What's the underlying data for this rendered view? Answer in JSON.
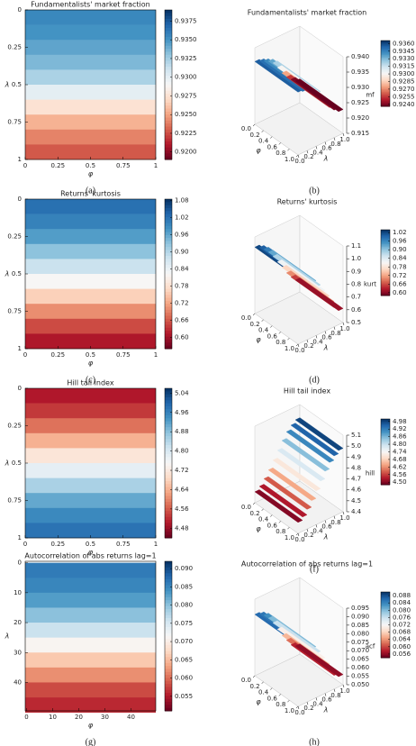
{
  "colormap": [
    "#67001f",
    "#b2182b",
    "#d6604d",
    "#f4a582",
    "#fddbc7",
    "#f7f7f7",
    "#d1e5f0",
    "#92c5de",
    "#4393c3",
    "#2166ac",
    "#053061"
  ],
  "chart_data": [
    {
      "type": "heatmap",
      "title": "Fundamentalists' market fraction",
      "caption": "(a)",
      "xlabel": "φ",
      "ylabel": "λ",
      "xlim": [
        0,
        1
      ],
      "xticks": [
        0,
        0.25,
        0.5,
        0.75,
        1
      ],
      "ylim": [
        0,
        1
      ],
      "yticks": [
        0,
        0.25,
        0.5,
        0.75,
        1
      ],
      "y": [
        0.05,
        0.15,
        0.25,
        0.35,
        0.45,
        0.55,
        0.65,
        0.75,
        0.85,
        0.95
      ],
      "values": [
        0.9355,
        0.935,
        0.9343,
        0.9335,
        0.9322,
        0.93,
        0.9275,
        0.9255,
        0.924,
        0.9228
      ],
      "clim": [
        0.919,
        0.939
      ],
      "cticks": [
        0.9375,
        {
          "value": 0.935,
          "label": "0.9350"
        },
        0.9325,
        {
          "value": 0.93,
          "label": "0.9300"
        },
        0.9275,
        {
          "value": 0.925,
          "label": "0.9250"
        },
        0.9225,
        {
          "value": 0.92,
          "label": "0.9200"
        }
      ]
    },
    {
      "type": "surface3d",
      "title": "Fundamentalists' market fraction",
      "caption": "(b)",
      "xlabel": "φ",
      "ylabel": "λ",
      "zlabel": "mf",
      "xlim": [
        0,
        1
      ],
      "xticks": [
        {
          "value": 0,
          "label": "0.0"
        },
        0.2,
        0.4,
        0.6,
        0.8,
        {
          "value": 1,
          "label": "1.0"
        }
      ],
      "ylim": [
        0,
        1
      ],
      "yticks": [
        {
          "value": 0,
          "label": "0.0"
        },
        0.2,
        0.4,
        0.6,
        0.8,
        {
          "value": 1,
          "label": "1.0"
        }
      ],
      "zlim": [
        0.915,
        0.94
      ],
      "zticks": [
        {
          "value": 0.94,
          "label": "0.940"
        },
        0.935,
        {
          "value": 0.93,
          "label": "0.930"
        },
        0.925,
        {
          "value": 0.92,
          "label": "0.920"
        },
        0.915
      ],
      "y": [
        0.05,
        0.15,
        0.25,
        0.35,
        0.45,
        0.55,
        0.65,
        0.75,
        0.85,
        0.95
      ],
      "values": [
        0.9355,
        0.935,
        0.9343,
        0.9335,
        0.9322,
        0.93,
        0.9275,
        0.9255,
        0.924,
        0.9228
      ],
      "clim": [
        0.9236,
        0.9366
      ],
      "cticks": [
        {
          "value": 0.936,
          "label": "0.9360"
        },
        0.9345,
        {
          "value": 0.933,
          "label": "0.9330"
        },
        0.9315,
        {
          "value": 0.93,
          "label": "0.9300"
        },
        0.9285,
        {
          "value": 0.927,
          "label": "0.9270"
        },
        0.9255,
        {
          "value": 0.924,
          "label": "0.9240"
        }
      ]
    },
    {
      "type": "heatmap",
      "title": "Returns' kurtosis",
      "caption": "(c)",
      "xlabel": "φ",
      "ylabel": "λ",
      "xlim": [
        0,
        1
      ],
      "xticks": [
        0,
        0.25,
        0.5,
        0.75,
        1
      ],
      "ylim": [
        0,
        1
      ],
      "yticks": [
        0,
        0.25,
        0.5,
        0.75,
        1
      ],
      "y": [
        0.05,
        0.15,
        0.25,
        0.35,
        0.45,
        0.55,
        0.65,
        0.75,
        0.85,
        0.95
      ],
      "values": [
        1.02,
        1.0,
        0.97,
        0.93,
        0.88,
        0.82,
        0.76,
        0.7,
        0.65,
        0.61
      ],
      "clim": [
        0.56,
        1.085
      ],
      "cticks": [
        1.08,
        1.02,
        0.96,
        {
          "value": 0.9,
          "label": "0.90"
        },
        0.84,
        0.78,
        0.72,
        0.66,
        {
          "value": 0.6,
          "label": "0.60"
        }
      ]
    },
    {
      "type": "surface3d",
      "title": "Returns' kurtosis",
      "caption": "(d)",
      "xlabel": "φ",
      "ylabel": "λ",
      "zlabel": "kurt",
      "xlim": [
        0,
        1
      ],
      "xticks": [
        {
          "value": 0,
          "label": "0.0"
        },
        0.2,
        0.4,
        0.6,
        0.8,
        {
          "value": 1,
          "label": "1.0"
        }
      ],
      "ylim": [
        0,
        1
      ],
      "yticks": [
        {
          "value": 0,
          "label": "0.0"
        },
        0.2,
        0.4,
        0.6,
        0.8,
        {
          "value": 1,
          "label": "1.0"
        }
      ],
      "zlim": [
        0.5,
        1.1
      ],
      "zticks": [
        1.1,
        {
          "value": 1,
          "label": "1.0"
        },
        0.9,
        0.8,
        0.7,
        0.6,
        0.5
      ],
      "y": [
        0.05,
        0.15,
        0.25,
        0.35,
        0.45,
        0.55,
        0.65,
        0.75,
        0.85,
        0.95
      ],
      "values": [
        1.02,
        1.0,
        0.97,
        0.93,
        0.88,
        0.82,
        0.76,
        0.7,
        0.65,
        0.61
      ],
      "clim": [
        0.58,
        1.04
      ],
      "cticks": [
        1.02,
        0.96,
        {
          "value": 0.9,
          "label": "0.90"
        },
        0.84,
        0.78,
        0.72,
        0.66,
        {
          "value": 0.6,
          "label": "0.60"
        }
      ]
    },
    {
      "type": "heatmap",
      "title": "Hill tail index",
      "caption": "(e)",
      "xlabel": "φ",
      "ylabel": "λ",
      "xlim": [
        0,
        1
      ],
      "xticks": [
        0,
        0.25,
        0.5,
        0.75,
        1
      ],
      "ylim": [
        0,
        1
      ],
      "yticks": [
        0,
        0.25,
        0.5,
        0.75,
        1
      ],
      "y": [
        0.05,
        0.15,
        0.25,
        0.35,
        0.45,
        0.55,
        0.65,
        0.75,
        0.85,
        0.95
      ],
      "values": [
        4.5,
        4.53,
        4.58,
        4.64,
        4.71,
        4.78,
        4.85,
        4.91,
        4.95,
        4.98
      ],
      "clim": [
        4.44,
        5.06
      ],
      "cticks": [
        5.04,
        4.96,
        4.88,
        {
          "value": 4.8,
          "label": "4.80"
        },
        4.72,
        4.64,
        4.56,
        4.48
      ]
    },
    {
      "type": "surface3d",
      "title": "Hill tail index",
      "caption": "(f)",
      "xlabel": "φ",
      "ylabel": "λ",
      "zlabel": "hill",
      "xlim": [
        0,
        1
      ],
      "xticks": [
        {
          "value": 0,
          "label": "0.0"
        },
        0.2,
        0.4,
        0.6,
        0.8,
        {
          "value": 1,
          "label": "1.0"
        }
      ],
      "ylim": [
        0,
        1
      ],
      "yticks": [
        {
          "value": 0,
          "label": "0.0"
        },
        0.2,
        0.4,
        0.6,
        0.8,
        {
          "value": 1,
          "label": "1.0"
        }
      ],
      "zlim": [
        4.4,
        5.1
      ],
      "zticks": [
        5.1,
        {
          "value": 5,
          "label": "5.0"
        },
        4.9,
        4.8,
        4.7,
        4.6,
        4.5,
        4.4
      ],
      "y": [
        0.05,
        0.15,
        0.25,
        0.35,
        0.45,
        0.55,
        0.65,
        0.75,
        0.85,
        0.95
      ],
      "values": [
        4.5,
        4.53,
        4.58,
        4.64,
        4.71,
        4.78,
        4.85,
        4.91,
        4.95,
        4.98
      ],
      "clim": [
        4.48,
        5.0
      ],
      "cticks": [
        4.98,
        4.92,
        4.86,
        {
          "value": 4.8,
          "label": "4.80"
        },
        4.74,
        4.68,
        4.62,
        4.56,
        {
          "value": 4.5,
          "label": "4.50"
        }
      ]
    },
    {
      "type": "heatmap",
      "title": "Autocorrelation of abs returns lag=1",
      "caption": "(g)",
      "xlabel": "φ",
      "ylabel": "λ",
      "xlim": [
        -0.5,
        49.5
      ],
      "xticks": [
        0,
        10,
        20,
        30,
        40
      ],
      "ylim": [
        -0.5,
        49.5
      ],
      "yticks": [
        0,
        10,
        20,
        30,
        40
      ],
      "y": [
        2.5,
        7.5,
        12.5,
        17.5,
        22.5,
        27.5,
        32.5,
        37.5,
        42.5,
        47.5
      ],
      "values": [
        0.086,
        0.085,
        0.083,
        0.08,
        0.076,
        0.071,
        0.066,
        0.062,
        0.058,
        0.056
      ],
      "clim": [
        0.051,
        0.092
      ],
      "cticks": [
        {
          "value": 0.09,
          "label": "0.090"
        },
        0.085,
        {
          "value": 0.08,
          "label": "0.080"
        },
        0.075,
        {
          "value": 0.07,
          "label": "0.070"
        },
        0.065,
        {
          "value": 0.06,
          "label": "0.060"
        },
        0.055
      ]
    },
    {
      "type": "surface3d",
      "title": "Autocorrelation of abs returns lag=1",
      "caption": "(h)",
      "xlabel": "φ",
      "ylabel": "λ",
      "zlabel": "acf",
      "xlim": [
        0,
        1
      ],
      "xticks": [
        {
          "value": 0,
          "label": "0.0"
        },
        0.2,
        0.4,
        0.6,
        0.8,
        {
          "value": 1,
          "label": "1.0"
        }
      ],
      "ylim": [
        0,
        1
      ],
      "yticks": [
        {
          "value": 0,
          "label": "0.0"
        },
        0.2,
        0.4,
        0.6,
        0.8,
        {
          "value": 1,
          "label": "1.0"
        }
      ],
      "zlim": [
        0.05,
        0.095
      ],
      "zticks": [
        0.095,
        {
          "value": 0.09,
          "label": "0.090"
        },
        0.085,
        {
          "value": 0.08,
          "label": "0.080"
        },
        0.075,
        {
          "value": 0.07,
          "label": "0.070"
        },
        0.065,
        {
          "value": 0.06,
          "label": "0.060"
        },
        0.055,
        {
          "value": 0.05,
          "label": "0.050"
        }
      ],
      "y": [
        0.05,
        0.15,
        0.25,
        0.35,
        0.45,
        0.55,
        0.65,
        0.75,
        0.85,
        0.95
      ],
      "values": [
        0.086,
        0.085,
        0.083,
        0.08,
        0.076,
        0.071,
        0.066,
        0.062,
        0.058,
        0.056
      ],
      "clim": [
        0.054,
        0.09
      ],
      "cticks": [
        0.088,
        0.084,
        {
          "value": 0.08,
          "label": "0.080"
        },
        0.076,
        0.072,
        0.068,
        0.064,
        {
          "value": 0.06,
          "label": "0.060"
        },
        0.056
      ]
    }
  ]
}
